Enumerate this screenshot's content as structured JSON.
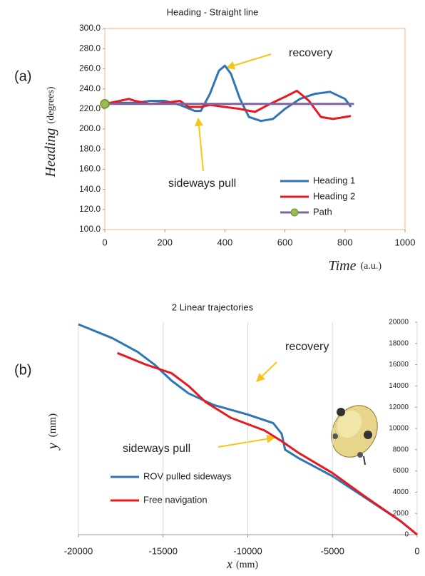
{
  "chart_data": [
    {
      "type": "line",
      "label": "(a)",
      "title": "Heading - Straight line",
      "xlabel": {
        "name": "Time",
        "unit": "(a.u.)"
      },
      "ylabel": {
        "name": "Heading",
        "unit": "(degrees)"
      },
      "xlim": [
        0,
        1000
      ],
      "xticks": [
        0,
        200,
        400,
        600,
        800,
        1000
      ],
      "ylim": [
        100,
        300
      ],
      "yticks": [
        {
          "value": 100,
          "label": "100.0"
        },
        {
          "value": 120,
          "label": "120.0"
        },
        {
          "value": 140,
          "label": "140.0"
        },
        {
          "value": 160,
          "label": "160.0"
        },
        {
          "value": 180,
          "label": "180.0"
        },
        {
          "value": 200,
          "label": "200.0"
        },
        {
          "value": 220,
          "label": "220.0"
        },
        {
          "value": 240,
          "label": "240.0"
        },
        {
          "value": 260,
          "label": "260.0"
        },
        {
          "value": 280,
          "label": "280.0"
        },
        {
          "value": 300,
          "label": "300.0"
        }
      ],
      "grid": false,
      "legend": "lower right",
      "annotations": [
        "recovery",
        "sideways pull"
      ],
      "series": [
        {
          "name": "Heading 1",
          "color": "#2e75b6",
          "x": [
            0,
            50,
            100,
            150,
            200,
            250,
            300,
            320,
            350,
            380,
            400,
            420,
            450,
            480,
            520,
            560,
            600,
            650,
            700,
            750,
            800,
            820
          ],
          "values": [
            225,
            226,
            226,
            228,
            228,
            224,
            218,
            218,
            235,
            258,
            263,
            255,
            230,
            212,
            208,
            210,
            220,
            230,
            235,
            237,
            230,
            222
          ]
        },
        {
          "name": "Heading 2",
          "color": "#e8191e",
          "x": [
            0,
            50,
            80,
            100,
            150,
            200,
            250,
            280,
            320,
            350,
            400,
            450,
            500,
            550,
            600,
            640,
            680,
            720,
            760,
            800,
            820
          ],
          "values": [
            225,
            228,
            230,
            228,
            225,
            226,
            228,
            222,
            222,
            224,
            222,
            220,
            217,
            225,
            232,
            238,
            228,
            212,
            210,
            212,
            213
          ]
        },
        {
          "name": "Path",
          "color": "#8064a2",
          "marker": "#9bbb59",
          "x": [
            0,
            830
          ],
          "values": [
            225,
            225
          ]
        }
      ]
    },
    {
      "type": "line",
      "label": "(b)",
      "title": "2 Linear trajectories",
      "xlabel": {
        "name": "x",
        "unit": "(mm)"
      },
      "ylabel": {
        "name": "y",
        "unit": "(mm)"
      },
      "xlim": [
        -20000,
        0
      ],
      "xticks": [
        -20000,
        -15000,
        -10000,
        -5000,
        0
      ],
      "ylim": [
        0,
        20000
      ],
      "yticks": [
        0,
        2000,
        4000,
        6000,
        8000,
        10000,
        12000,
        14000,
        16000,
        18000,
        20000
      ],
      "grid": true,
      "legend": "lower left",
      "annotations": [
        "recovery",
        "sideways pull"
      ],
      "series": [
        {
          "name": "ROV pulled sideways",
          "color": "#2e75b6",
          "x": [
            -20000,
            -18000,
            -16500,
            -15500,
            -14500,
            -13500,
            -12000,
            -10000,
            -8500,
            -8000,
            -7800,
            -7000,
            -5000,
            -3000,
            -1000,
            0
          ],
          "values": [
            19800,
            18500,
            17200,
            16000,
            14500,
            13300,
            12200,
            11300,
            10500,
            9500,
            8000,
            7200,
            5500,
            3400,
            1300,
            0
          ]
        },
        {
          "name": "Free navigation",
          "color": "#e8191e",
          "x": [
            -17700,
            -16000,
            -14500,
            -13500,
            -12500,
            -11000,
            -9000,
            -8000,
            -7000,
            -5000,
            -3000,
            -1000,
            0
          ],
          "values": [
            17100,
            16000,
            15200,
            14000,
            12500,
            11000,
            9800,
            8800,
            7700,
            5800,
            3500,
            1300,
            0
          ]
        }
      ]
    }
  ]
}
